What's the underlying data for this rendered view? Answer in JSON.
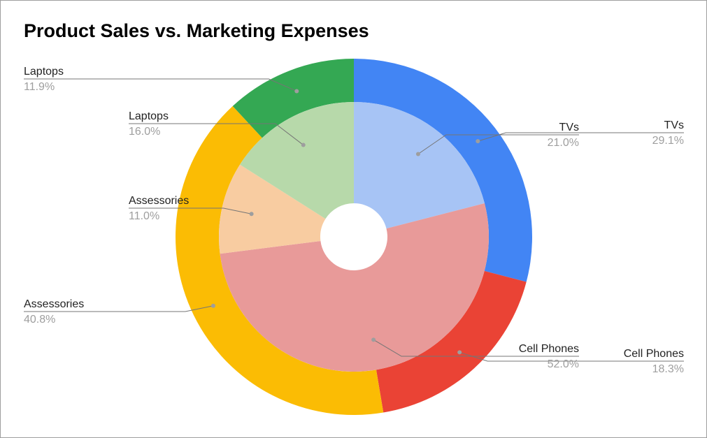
{
  "chart_data": {
    "type": "pie",
    "title": "Product Sales vs. Marketing Expenses",
    "series": [
      {
        "ring": "outer",
        "categories": [
          "TVs",
          "Cell Phones",
          "Assessories",
          "Laptops"
        ],
        "values": [
          29.1,
          18.3,
          40.8,
          11.9
        ],
        "labels": [
          "29.1%",
          "18.3%",
          "40.8%",
          "11.9%"
        ],
        "colors": [
          "#4285f4",
          "#ea4335",
          "#fbbc04",
          "#34a853"
        ]
      },
      {
        "ring": "inner",
        "categories": [
          "TVs",
          "Cell Phones",
          "Assessories",
          "Laptops"
        ],
        "values": [
          21.0,
          52.0,
          11.0,
          16.0
        ],
        "labels": [
          "21.0%",
          "52.0%",
          "11.0%",
          "16.0%"
        ],
        "colors": [
          "#a7c4f5",
          "#e89a99",
          "#f8cca1",
          "#b7d9aa"
        ]
      }
    ],
    "legend": "none",
    "label_placement": "outside with leader lines"
  }
}
